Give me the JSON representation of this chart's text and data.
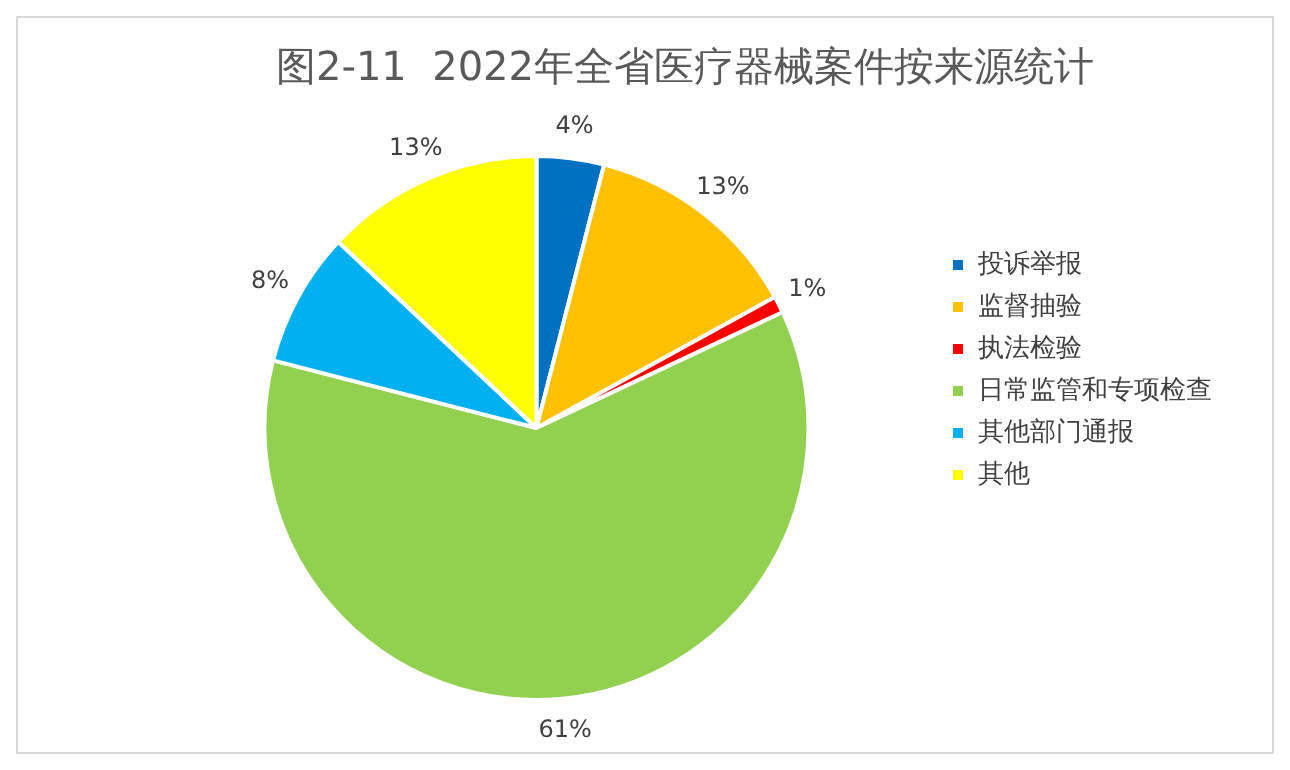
{
  "chart_data": {
    "type": "pie",
    "title": "图2-11  2022年全省医疗器械案件按来源统计",
    "categories": [
      "投诉举报",
      "监督抽验",
      "执法检验",
      "日常监管和专项检查",
      "其他部门通报",
      "其他"
    ],
    "values": [
      4,
      13,
      1,
      61,
      8,
      13
    ],
    "colors": [
      "#0070c0",
      "#ffc000",
      "#ff0000",
      "#92d050",
      "#00b0f0",
      "#ffff00"
    ],
    "value_labels": [
      "4%",
      "13%",
      "1%",
      "61%",
      "8%",
      "13%"
    ],
    "legend": "right"
  }
}
